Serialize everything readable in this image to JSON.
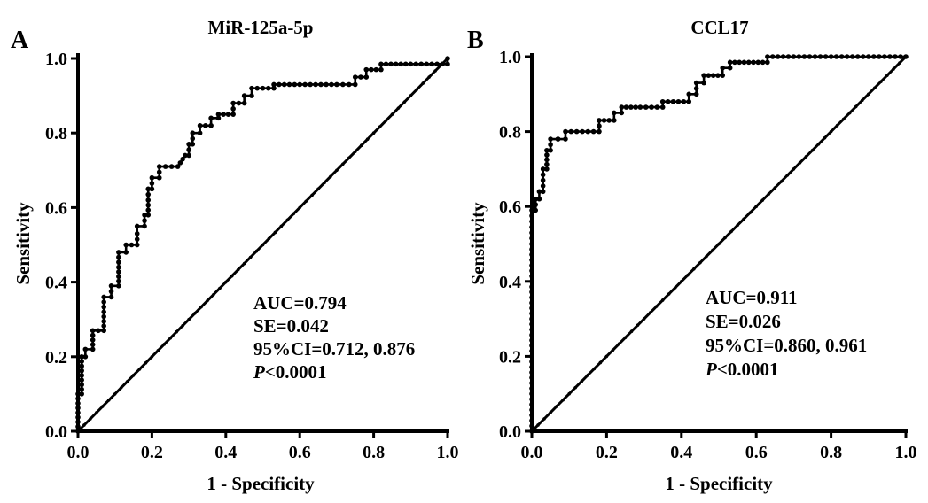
{
  "chart_data": [
    {
      "type": "line",
      "panel_label": "A",
      "title": "MiR-125a-5p",
      "xlabel": "1 - Specificity",
      "ylabel": "Sensitivity",
      "xlim": [
        0,
        1
      ],
      "ylim": [
        0,
        1
      ],
      "x_ticks": [
        "0.0",
        "0.2",
        "0.4",
        "0.6",
        "0.8",
        "1.0"
      ],
      "y_ticks": [
        "0.0",
        "0.2",
        "0.4",
        "0.6",
        "0.8",
        "1.0"
      ],
      "stats": {
        "auc": "AUC=0.794",
        "se": "SE=0.042",
        "ci": "95%CI=0.712, 0.876",
        "p_symbol": "P",
        "p_value": "<0.0001"
      },
      "series": [
        {
          "points": [
            [
              0,
              0
            ],
            [
              0,
              0.05
            ],
            [
              0,
              0.1
            ],
            [
              0.01,
              0.1
            ],
            [
              0.01,
              0.15
            ],
            [
              0.01,
              0.2
            ],
            [
              0.02,
              0.2
            ],
            [
              0.02,
              0.22
            ],
            [
              0.04,
              0.22
            ],
            [
              0.04,
              0.27
            ],
            [
              0.07,
              0.27
            ],
            [
              0.07,
              0.32
            ],
            [
              0.07,
              0.36
            ],
            [
              0.09,
              0.36
            ],
            [
              0.09,
              0.39
            ],
            [
              0.11,
              0.39
            ],
            [
              0.11,
              0.44
            ],
            [
              0.11,
              0.48
            ],
            [
              0.13,
              0.48
            ],
            [
              0.13,
              0.5
            ],
            [
              0.16,
              0.5
            ],
            [
              0.16,
              0.53
            ],
            [
              0.16,
              0.55
            ],
            [
              0.18,
              0.55
            ],
            [
              0.18,
              0.58
            ],
            [
              0.19,
              0.58
            ],
            [
              0.19,
              0.62
            ],
            [
              0.19,
              0.65
            ],
            [
              0.2,
              0.65
            ],
            [
              0.2,
              0.68
            ],
            [
              0.22,
              0.68
            ],
            [
              0.22,
              0.71
            ],
            [
              0.27,
              0.71
            ],
            [
              0.29,
              0.74
            ],
            [
              0.3,
              0.74
            ],
            [
              0.3,
              0.77
            ],
            [
              0.31,
              0.77
            ],
            [
              0.31,
              0.8
            ],
            [
              0.33,
              0.8
            ],
            [
              0.33,
              0.82
            ],
            [
              0.36,
              0.82
            ],
            [
              0.36,
              0.84
            ],
            [
              0.38,
              0.84
            ],
            [
              0.38,
              0.85
            ],
            [
              0.42,
              0.85
            ],
            [
              0.42,
              0.88
            ],
            [
              0.45,
              0.88
            ],
            [
              0.45,
              0.9
            ],
            [
              0.47,
              0.9
            ],
            [
              0.47,
              0.92
            ],
            [
              0.53,
              0.92
            ],
            [
              0.53,
              0.93
            ],
            [
              0.6,
              0.93
            ],
            [
              0.7,
              0.93
            ],
            [
              0.75,
              0.93
            ],
            [
              0.75,
              0.95
            ],
            [
              0.78,
              0.95
            ],
            [
              0.78,
              0.97
            ],
            [
              0.82,
              0.97
            ],
            [
              0.82,
              0.985
            ],
            [
              0.9,
              0.985
            ],
            [
              1,
              0.985
            ],
            [
              1,
              1
            ]
          ]
        },
        {
          "reference_diagonal": true,
          "points": [
            [
              0,
              0
            ],
            [
              1,
              1
            ]
          ]
        }
      ]
    },
    {
      "type": "line",
      "panel_label": "B",
      "title": "CCL17",
      "xlabel": "1 - Specificity",
      "ylabel": "Sensitivity",
      "xlim": [
        0,
        1
      ],
      "ylim": [
        0,
        1
      ],
      "x_ticks": [
        "0.0",
        "0.2",
        "0.4",
        "0.6",
        "0.8",
        "1.0"
      ],
      "y_ticks": [
        "0.0",
        "0.2",
        "0.4",
        "0.6",
        "0.8",
        "1.0"
      ],
      "stats": {
        "auc": "AUC=0.911",
        "se": "SE=0.026",
        "ci": "95%CI=0.860, 0.961",
        "p_symbol": "P",
        "p_value": "<0.0001"
      },
      "series": [
        {
          "points": [
            [
              0,
              0
            ],
            [
              0,
              0.1
            ],
            [
              0,
              0.2
            ],
            [
              0,
              0.3
            ],
            [
              0,
              0.4
            ],
            [
              0,
              0.5
            ],
            [
              0,
              0.59
            ],
            [
              0.01,
              0.59
            ],
            [
              0.01,
              0.62
            ],
            [
              0.02,
              0.62
            ],
            [
              0.02,
              0.64
            ],
            [
              0.03,
              0.64
            ],
            [
              0.03,
              0.7
            ],
            [
              0.04,
              0.7
            ],
            [
              0.04,
              0.75
            ],
            [
              0.05,
              0.75
            ],
            [
              0.05,
              0.78
            ],
            [
              0.07,
              0.78
            ],
            [
              0.07,
              0.78
            ],
            [
              0.09,
              0.78
            ],
            [
              0.09,
              0.8
            ],
            [
              0.12,
              0.8
            ],
            [
              0.18,
              0.8
            ],
            [
              0.18,
              0.83
            ],
            [
              0.22,
              0.83
            ],
            [
              0.22,
              0.85
            ],
            [
              0.24,
              0.85
            ],
            [
              0.24,
              0.865
            ],
            [
              0.29,
              0.865
            ],
            [
              0.35,
              0.865
            ],
            [
              0.35,
              0.88
            ],
            [
              0.42,
              0.88
            ],
            [
              0.42,
              0.9
            ],
            [
              0.44,
              0.9
            ],
            [
              0.44,
              0.93
            ],
            [
              0.46,
              0.93
            ],
            [
              0.46,
              0.95
            ],
            [
              0.51,
              0.95
            ],
            [
              0.51,
              0.97
            ],
            [
              0.53,
              0.97
            ],
            [
              0.53,
              0.985
            ],
            [
              0.58,
              0.985
            ],
            [
              0.63,
              0.985
            ],
            [
              0.63,
              1
            ],
            [
              0.7,
              1
            ],
            [
              0.8,
              1
            ],
            [
              0.9,
              1
            ],
            [
              1,
              1
            ]
          ]
        },
        {
          "reference_diagonal": true,
          "points": [
            [
              0,
              0
            ],
            [
              1,
              1
            ]
          ]
        }
      ]
    }
  ]
}
